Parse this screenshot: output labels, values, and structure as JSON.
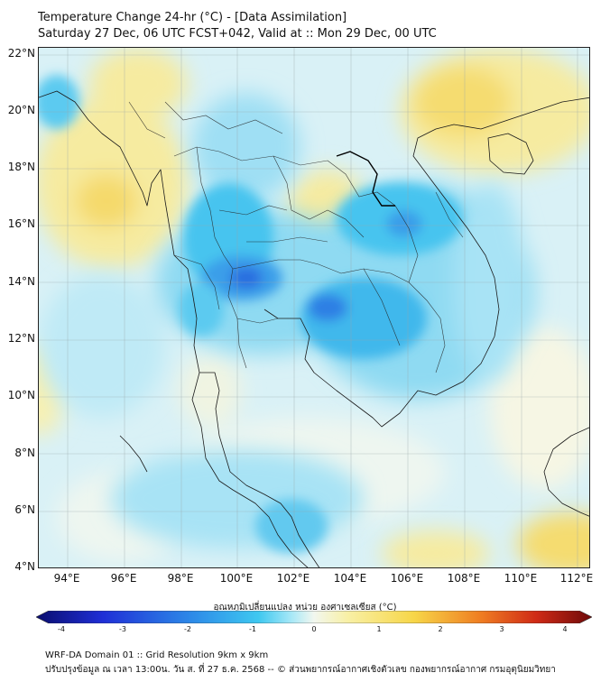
{
  "title": {
    "line1": "Temperature Change 24-hr (°C) - [Data Assimilation]",
    "line2": "Saturday 27 Dec, 06 UTC FCST+042, Valid at :: Mon 29 Dec, 00 UTC"
  },
  "map": {
    "lat_range": [
      4,
      22
    ],
    "lon_range": [
      93,
      112.5
    ],
    "y_ticks": [
      "22°N",
      "20°N",
      "18°N",
      "16°N",
      "14°N",
      "12°N",
      "10°N",
      "8°N",
      "6°N",
      "4°N"
    ],
    "x_ticks": [
      "94°E",
      "96°E",
      "98°E",
      "100°E",
      "102°E",
      "104°E",
      "106°E",
      "108°E",
      "110°E",
      "112°E"
    ]
  },
  "colorbar": {
    "label": "อุณหภูมิเปลี่ยนแปลง หน่วย องศาเซลเซียส (°C)",
    "ticks": [
      "-4",
      "-3",
      "-2",
      "-1",
      "0",
      "1",
      "2",
      "3",
      "4"
    ],
    "min": -4,
    "max": 4,
    "colors": {
      "min": "#0a0d6e",
      "strong_cold": "#1f2fd6",
      "cold": "#2d8ae8",
      "cool": "#3ec8f0",
      "slight_cool": "#a8e8f7",
      "neutral": "#f2f7ef",
      "slight_warm": "#f8f0a6",
      "warm": "#f7d648",
      "hot": "#ef7d22",
      "very_hot": "#cf2a16",
      "max": "#6e0a0a"
    }
  },
  "footer": {
    "line1": "WRF-DA Domain 01 :: Grid Resolution 9km x 9km",
    "line2": "ปรับปรุงข้อมูล ณ เวลา 13:00น. วัน ส. ที่ 27 ธ.ค. 2568 -- © ส่วนพยากรณ์อากาศเชิงตัวเลข กองพยากรณ์อากาศ กรมอุตุนิยมวิทยา"
  }
}
